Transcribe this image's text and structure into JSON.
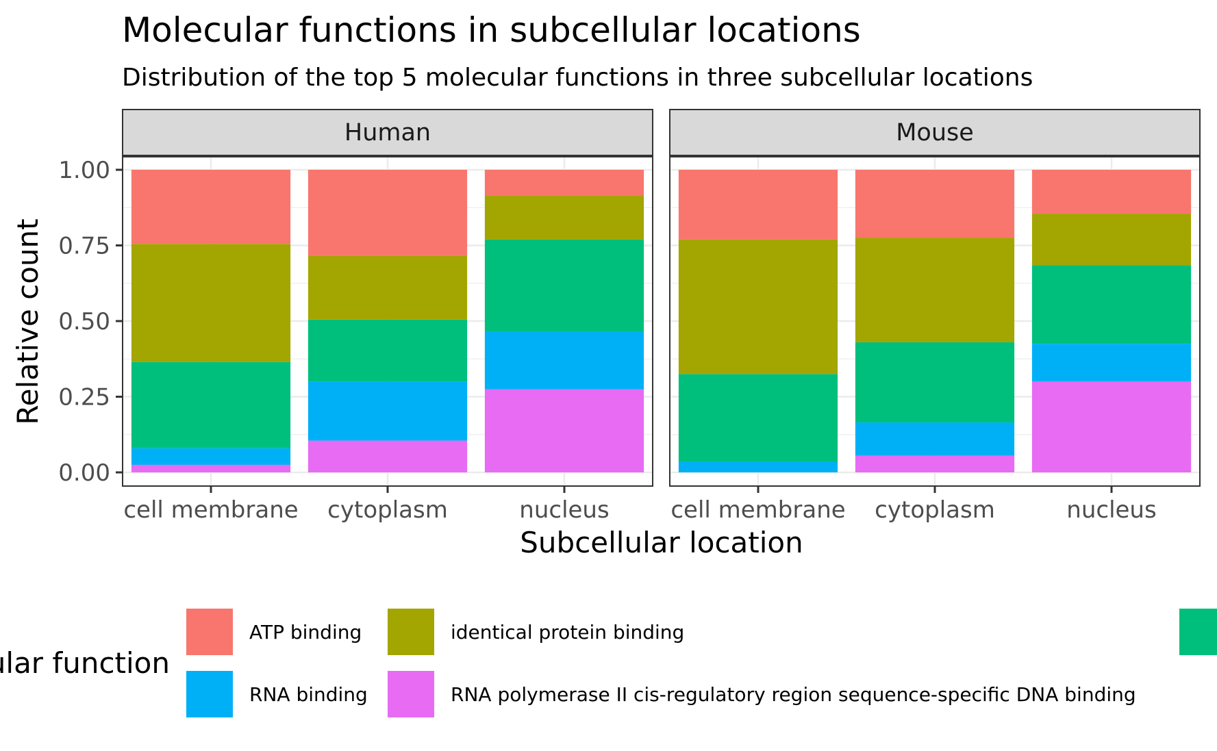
{
  "chart_data": {
    "type": "bar",
    "stacked": true,
    "title": "Molecular functions in subcellular locations",
    "subtitle": "Distribution of the top 5 molecular functions in three subcellular locations",
    "xlabel": "Subcellular location",
    "ylabel": "Relative count",
    "ylim": [
      0,
      1
    ],
    "yticks": [
      "0.00",
      "0.25",
      "0.50",
      "0.75",
      "1.00"
    ],
    "ytick_values": [
      0,
      0.25,
      0.5,
      0.75,
      1.0
    ],
    "categories": [
      "cell membrane",
      "cytoplasm",
      "nucleus"
    ],
    "grid": true,
    "legend_position": "bottom",
    "legend_title": "ular function",
    "panels": [
      {
        "name": "Human",
        "series": [
          {
            "name": "RNA polymerase II cis-regulatory region sequence-specific DNA binding",
            "values": [
              0.025,
              0.105,
              0.275
            ]
          },
          {
            "name": "RNA binding",
            "values": [
              0.055,
              0.195,
              0.19
            ]
          },
          {
            "name": "",
            "values": [
              0.285,
              0.205,
              0.305
            ]
          },
          {
            "name": "identical protein binding",
            "values": [
              0.39,
              0.21,
              0.145
            ]
          },
          {
            "name": "ATP binding",
            "values": [
              0.245,
              0.285,
              0.085
            ]
          }
        ]
      },
      {
        "name": "Mouse",
        "series": [
          {
            "name": "RNA polymerase II cis-regulatory region sequence-specific DNA binding",
            "values": [
              0.0,
              0.055,
              0.3
            ]
          },
          {
            "name": "RNA binding",
            "values": [
              0.035,
              0.11,
              0.125
            ]
          },
          {
            "name": "",
            "values": [
              0.29,
              0.265,
              0.26
            ]
          },
          {
            "name": "identical protein binding",
            "values": [
              0.445,
              0.345,
              0.17
            ]
          },
          {
            "name": "ATP binding",
            "values": [
              0.23,
              0.225,
              0.145
            ]
          }
        ]
      }
    ],
    "legend_items": [
      {
        "label": "ATP binding",
        "color": "#F8766D"
      },
      {
        "label": "identical protein binding",
        "color": "#A3A500"
      },
      {
        "label": "RNA binding",
        "color": "#00B0F6"
      },
      {
        "label": "RNA polymerase II cis-regulatory region sequence-specific DNA binding",
        "color": "#E76BF3"
      },
      {
        "label": "",
        "color": "#00BF7D"
      }
    ],
    "series_colors": [
      "#E76BF3",
      "#00B0F6",
      "#00BF7D",
      "#A3A500",
      "#F8766D"
    ]
  }
}
